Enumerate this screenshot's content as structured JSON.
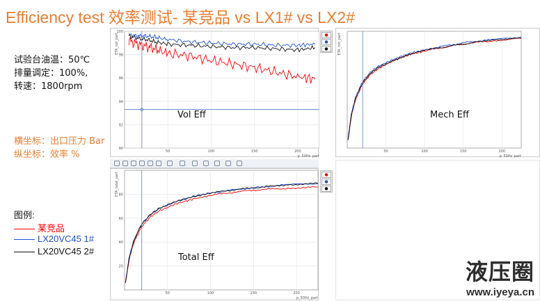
{
  "title": "Efficiency test 效率测试- 某竞品 vs LX1# vs LX2#",
  "conditions": [
    "试验台油温：50℃",
    "排量调定：100%,",
    "转速：1800rpm"
  ],
  "axes_note": [
    "横坐标：出口压力 Bar",
    "纵坐标：效率 %"
  ],
  "legend": {
    "heading": "图例:",
    "items": [
      {
        "label": "某竞品",
        "color": "#ff0000"
      },
      {
        "label": "LX20VC45 1#",
        "color": "#1f4fd8"
      },
      {
        "label": "LX20VC45 2#",
        "color": "#111111"
      }
    ]
  },
  "watermark": {
    "name": "液压圈",
    "url": "www.iyeya.cn"
  },
  "colors": {
    "competitor": "#ff0000",
    "lx1": "#1f4fd8",
    "lx2": "#111111",
    "accent": "#ed7d31"
  },
  "chart_data": [
    {
      "type": "line",
      "title": "Vol Eff",
      "xlabel": "p_50Hz_part",
      "ylabel": "ETA_vol_part",
      "xlim": [
        0,
        225
      ],
      "ylim": [
        90,
        100
      ],
      "xticks": [
        50,
        100,
        150,
        200
      ],
      "xticklabels": [
        "50",
        "100",
        "150",
        "200"
      ],
      "yticks": [
        90,
        92,
        94,
        96,
        98,
        100
      ],
      "yticklabels": [
        "90",
        "92",
        "94",
        "96",
        "98",
        "100"
      ],
      "grid": true,
      "cursor": {
        "x": 20,
        "y": 93.3
      },
      "x": [
        5,
        15,
        25,
        35,
        50,
        75,
        100,
        125,
        150,
        175,
        200,
        220
      ],
      "series": [
        {
          "color_key": "competitor",
          "values": [
            99.2,
            98.9,
            98.7,
            98.5,
            98.1,
            97.9,
            97.5,
            97.2,
            96.9,
            96.5,
            96.1,
            95.9
          ]
        },
        {
          "color_key": "lx1",
          "values": [
            99.7,
            99.6,
            99.6,
            99.5,
            99.3,
            99.1,
            99.0,
            98.9,
            98.9,
            98.8,
            98.8,
            98.9
          ]
        },
        {
          "color_key": "lx2",
          "values": [
            99.6,
            99.4,
            99.3,
            99.1,
            98.9,
            98.8,
            98.7,
            98.6,
            98.6,
            98.5,
            98.4,
            98.6
          ]
        }
      ]
    },
    {
      "type": "line",
      "title": "Mech Eff",
      "xlabel": "p_50Hz_part",
      "ylabel": "ETA_mh_part",
      "xlim": [
        0,
        225
      ],
      "ylim": [
        0,
        100
      ],
      "xticks": [
        50,
        100,
        150,
        200
      ],
      "xticklabels": [
        "50",
        "100",
        "150",
        "200"
      ],
      "yticks": [],
      "yticklabels": [],
      "grid": true,
      "cursor": {
        "x": 20
      },
      "x": [
        1,
        5,
        10,
        15,
        20,
        30,
        40,
        60,
        80,
        100,
        130,
        160,
        190,
        225
      ],
      "series": [
        {
          "color_key": "competitor",
          "values": [
            6,
            26,
            40,
            48,
            55,
            63,
            68,
            75,
            80,
            83,
            87,
            90,
            92,
            94
          ]
        },
        {
          "color_key": "lx1",
          "values": [
            8,
            28,
            42,
            50,
            57,
            65,
            70,
            76,
            81,
            84,
            88,
            91,
            93,
            95
          ]
        },
        {
          "color_key": "lx2",
          "values": [
            7,
            27,
            41,
            49,
            56,
            64,
            69,
            75,
            80,
            84,
            87,
            90,
            93,
            94
          ]
        }
      ]
    },
    {
      "type": "line",
      "title": "Total Eff",
      "xlabel": "p_50Hz_part",
      "ylabel": "ETA_total_part",
      "xlim": [
        0,
        225
      ],
      "ylim": [
        0,
        100
      ],
      "xticks": [
        50,
        100,
        150,
        200
      ],
      "xticklabels": [
        "50",
        "100",
        "150",
        "200"
      ],
      "yticks": [
        20,
        40,
        60,
        80
      ],
      "yticklabels": [
        "20",
        "40",
        "60",
        "80"
      ],
      "grid": true,
      "cursor": {
        "x": 20
      },
      "x": [
        1,
        5,
        10,
        15,
        20,
        30,
        40,
        60,
        80,
        100,
        130,
        160,
        190,
        225
      ],
      "series": [
        {
          "color_key": "competitor",
          "values": [
            5,
            24,
            38,
            46,
            53,
            61,
            66,
            72,
            76,
            79,
            82,
            84,
            85,
            86
          ]
        },
        {
          "color_key": "lx1",
          "values": [
            6,
            26,
            40,
            48,
            55,
            63,
            68,
            74,
            78,
            81,
            84,
            86,
            88,
            89
          ]
        },
        {
          "color_key": "lx2",
          "values": [
            6,
            25,
            39,
            48,
            55,
            63,
            68,
            74,
            78,
            81,
            84,
            86,
            88,
            89
          ]
        }
      ]
    }
  ]
}
